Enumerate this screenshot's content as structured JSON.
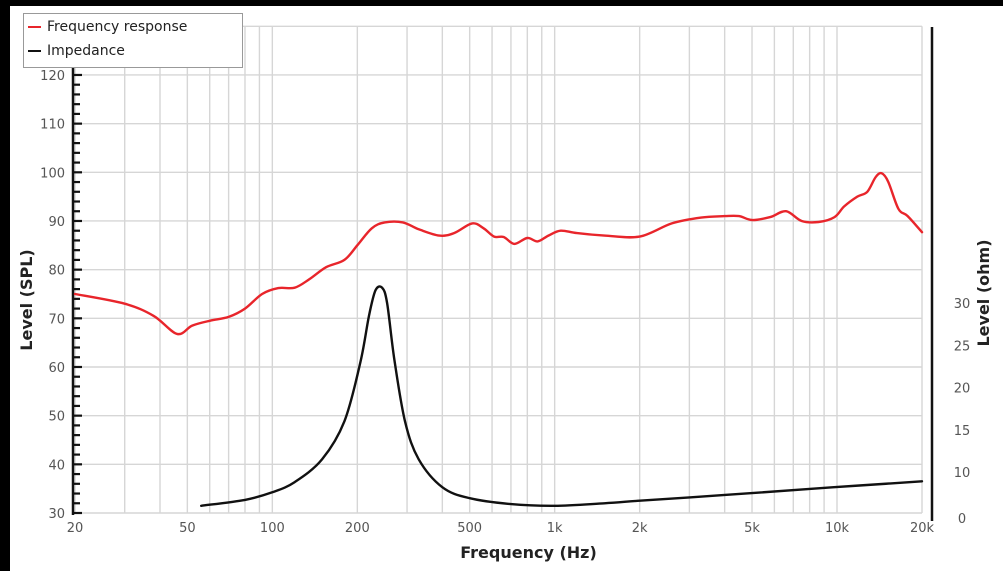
{
  "chart_data": {
    "type": "line",
    "title": "",
    "xlabel": "Frequency (Hz)",
    "ylabel": "Level (SPL)",
    "y2label": "Level (ohm)",
    "xscale": "log",
    "xlim": [
      20,
      20000
    ],
    "ylim": [
      30,
      130
    ],
    "x_ticks": [
      {
        "value": 20,
        "label": "20"
      },
      {
        "value": 50,
        "label": "50"
      },
      {
        "value": 100,
        "label": "100"
      },
      {
        "value": 200,
        "label": "200"
      },
      {
        "value": 500,
        "label": "500"
      },
      {
        "value": 1000,
        "label": "1k"
      },
      {
        "value": 2000,
        "label": "2k"
      },
      {
        "value": 5000,
        "label": "5k"
      },
      {
        "value": 10000,
        "label": "10k"
      },
      {
        "value": 20000,
        "label": "20k"
      }
    ],
    "y_ticks": [
      30,
      40,
      50,
      60,
      70,
      80,
      90,
      100,
      110,
      120
    ],
    "y2_ticks": [
      0,
      10,
      15,
      20,
      25,
      30
    ],
    "grid": true,
    "legend_position": "top-left",
    "series": [
      {
        "name": "Frequency response",
        "color": "#e8252b",
        "axis": "left",
        "points": [
          [
            20,
            75
          ],
          [
            30,
            73
          ],
          [
            38,
            70.5
          ],
          [
            46,
            66.8
          ],
          [
            52,
            68.5
          ],
          [
            60,
            69.5
          ],
          [
            70,
            70.3
          ],
          [
            80,
            72
          ],
          [
            92,
            75
          ],
          [
            105,
            76.2
          ],
          [
            120,
            76.3
          ],
          [
            135,
            78
          ],
          [
            155,
            80.5
          ],
          [
            180,
            82
          ],
          [
            200,
            85
          ],
          [
            225,
            88.5
          ],
          [
            250,
            89.7
          ],
          [
            290,
            89.7
          ],
          [
            330,
            88.3
          ],
          [
            390,
            87
          ],
          [
            440,
            87.5
          ],
          [
            510,
            89.5
          ],
          [
            560,
            88.5
          ],
          [
            610,
            86.8
          ],
          [
            660,
            86.7
          ],
          [
            720,
            85.3
          ],
          [
            800,
            86.5
          ],
          [
            870,
            85.8
          ],
          [
            950,
            87
          ],
          [
            1050,
            88
          ],
          [
            1200,
            87.5
          ],
          [
            1500,
            87
          ],
          [
            2000,
            86.8
          ],
          [
            2600,
            89.5
          ],
          [
            3300,
            90.7
          ],
          [
            4000,
            91
          ],
          [
            4500,
            91
          ],
          [
            5000,
            90.2
          ],
          [
            5800,
            90.8
          ],
          [
            6600,
            92
          ],
          [
            7500,
            90
          ],
          [
            8600,
            89.8
          ],
          [
            9800,
            90.8
          ],
          [
            10600,
            93
          ],
          [
            11800,
            95
          ],
          [
            12800,
            96
          ],
          [
            13700,
            99
          ],
          [
            14400,
            99.8
          ],
          [
            15200,
            98
          ],
          [
            16500,
            92.5
          ],
          [
            17800,
            91
          ],
          [
            20000,
            87.7
          ]
        ]
      },
      {
        "name": "Impedance",
        "color": "#111111",
        "axis": "right",
        "points": [
          [
            56,
            6
          ],
          [
            80,
            6.7
          ],
          [
            100,
            7.6
          ],
          [
            120,
            8.8
          ],
          [
            150,
            11.5
          ],
          [
            180,
            16
          ],
          [
            205,
            23
          ],
          [
            220,
            28.5
          ],
          [
            232,
            31.5
          ],
          [
            245,
            31.8
          ],
          [
            255,
            30
          ],
          [
            270,
            23.5
          ],
          [
            295,
            16
          ],
          [
            330,
            11.5
          ],
          [
            400,
            8.2
          ],
          [
            500,
            6.9
          ],
          [
            700,
            6.2
          ],
          [
            1000,
            6
          ],
          [
            1500,
            6.3
          ],
          [
            2000,
            6.6
          ],
          [
            3000,
            7
          ],
          [
            5000,
            7.5
          ],
          [
            8000,
            8
          ],
          [
            12000,
            8.4
          ],
          [
            20000,
            8.9
          ]
        ]
      }
    ]
  },
  "legend": {
    "items": [
      {
        "label": "Frequency response",
        "color": "#e8252b"
      },
      {
        "label": "Impedance",
        "color": "#111111"
      }
    ]
  },
  "axes": {
    "x_title": "Frequency (Hz)",
    "y_title": "Level (SPL)",
    "y2_title": "Level (ohm)"
  }
}
